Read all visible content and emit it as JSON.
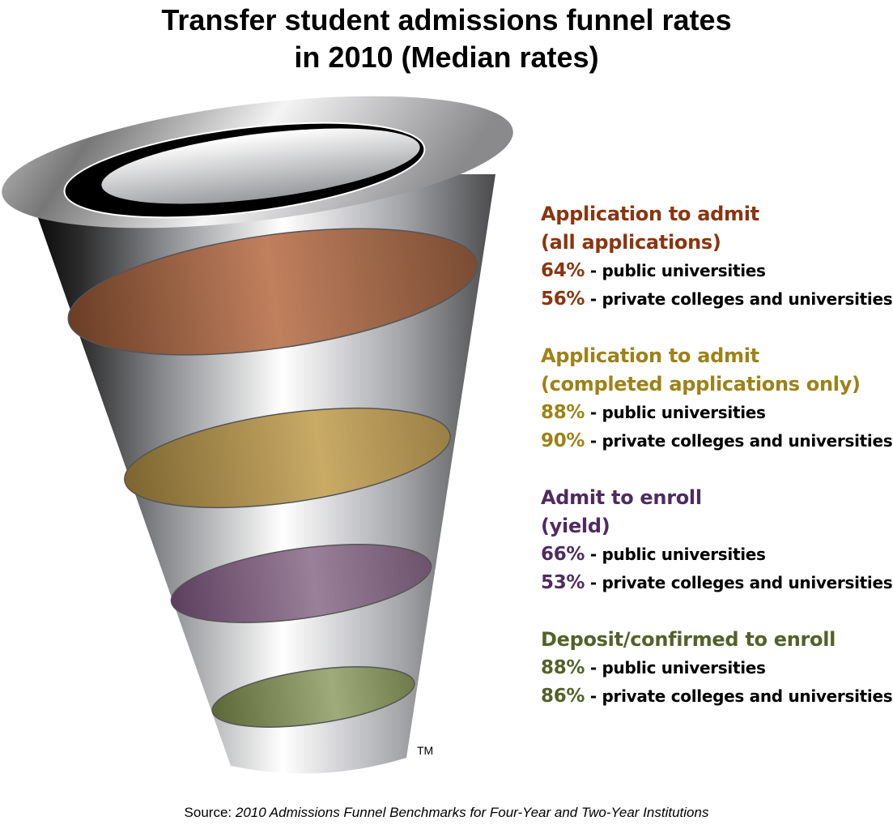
{
  "title": [
    "Transfer student admissions funnel rates",
    "in 2010 (Median rates)"
  ],
  "sections": [
    {
      "heading": [
        "Application to admit",
        "(all applications)"
      ],
      "color": "#8a3510",
      "band_color": "#c0805e",
      "rows": [
        {
          "value": "64%",
          "label": " - public universities"
        },
        {
          "value": "56%",
          "label": " - private colleges and universities"
        }
      ]
    },
    {
      "heading": [
        "Application to admit",
        "(completed applications only)"
      ],
      "color": "#9d8217",
      "band_color": "#c9ab66",
      "rows": [
        {
          "value": "88%",
          "label": " - public universities"
        },
        {
          "value": "90%",
          "label": " - private colleges and universities"
        }
      ]
    },
    {
      "heading": [
        "Admit to enroll",
        "(yield)"
      ],
      "color": "#4f2b60",
      "band_color": "#9b809a",
      "rows": [
        {
          "value": "66%",
          "label": " - public universities"
        },
        {
          "value": "53%",
          "label": " - private colleges and universities"
        }
      ]
    },
    {
      "heading": [
        "Deposit/confirmed to enroll"
      ],
      "color": "#53612a",
      "band_color": "#9fab7a",
      "rows": [
        {
          "value": "88%",
          "label": " - public universities"
        },
        {
          "value": "86%",
          "label": " - private colleges and universities"
        }
      ]
    }
  ],
  "trademark": "TM",
  "source": {
    "prefix": "Source: ",
    "title": "2010 Admissions Funnel Benchmarks for Four-Year and Two-Year Institutions"
  }
}
